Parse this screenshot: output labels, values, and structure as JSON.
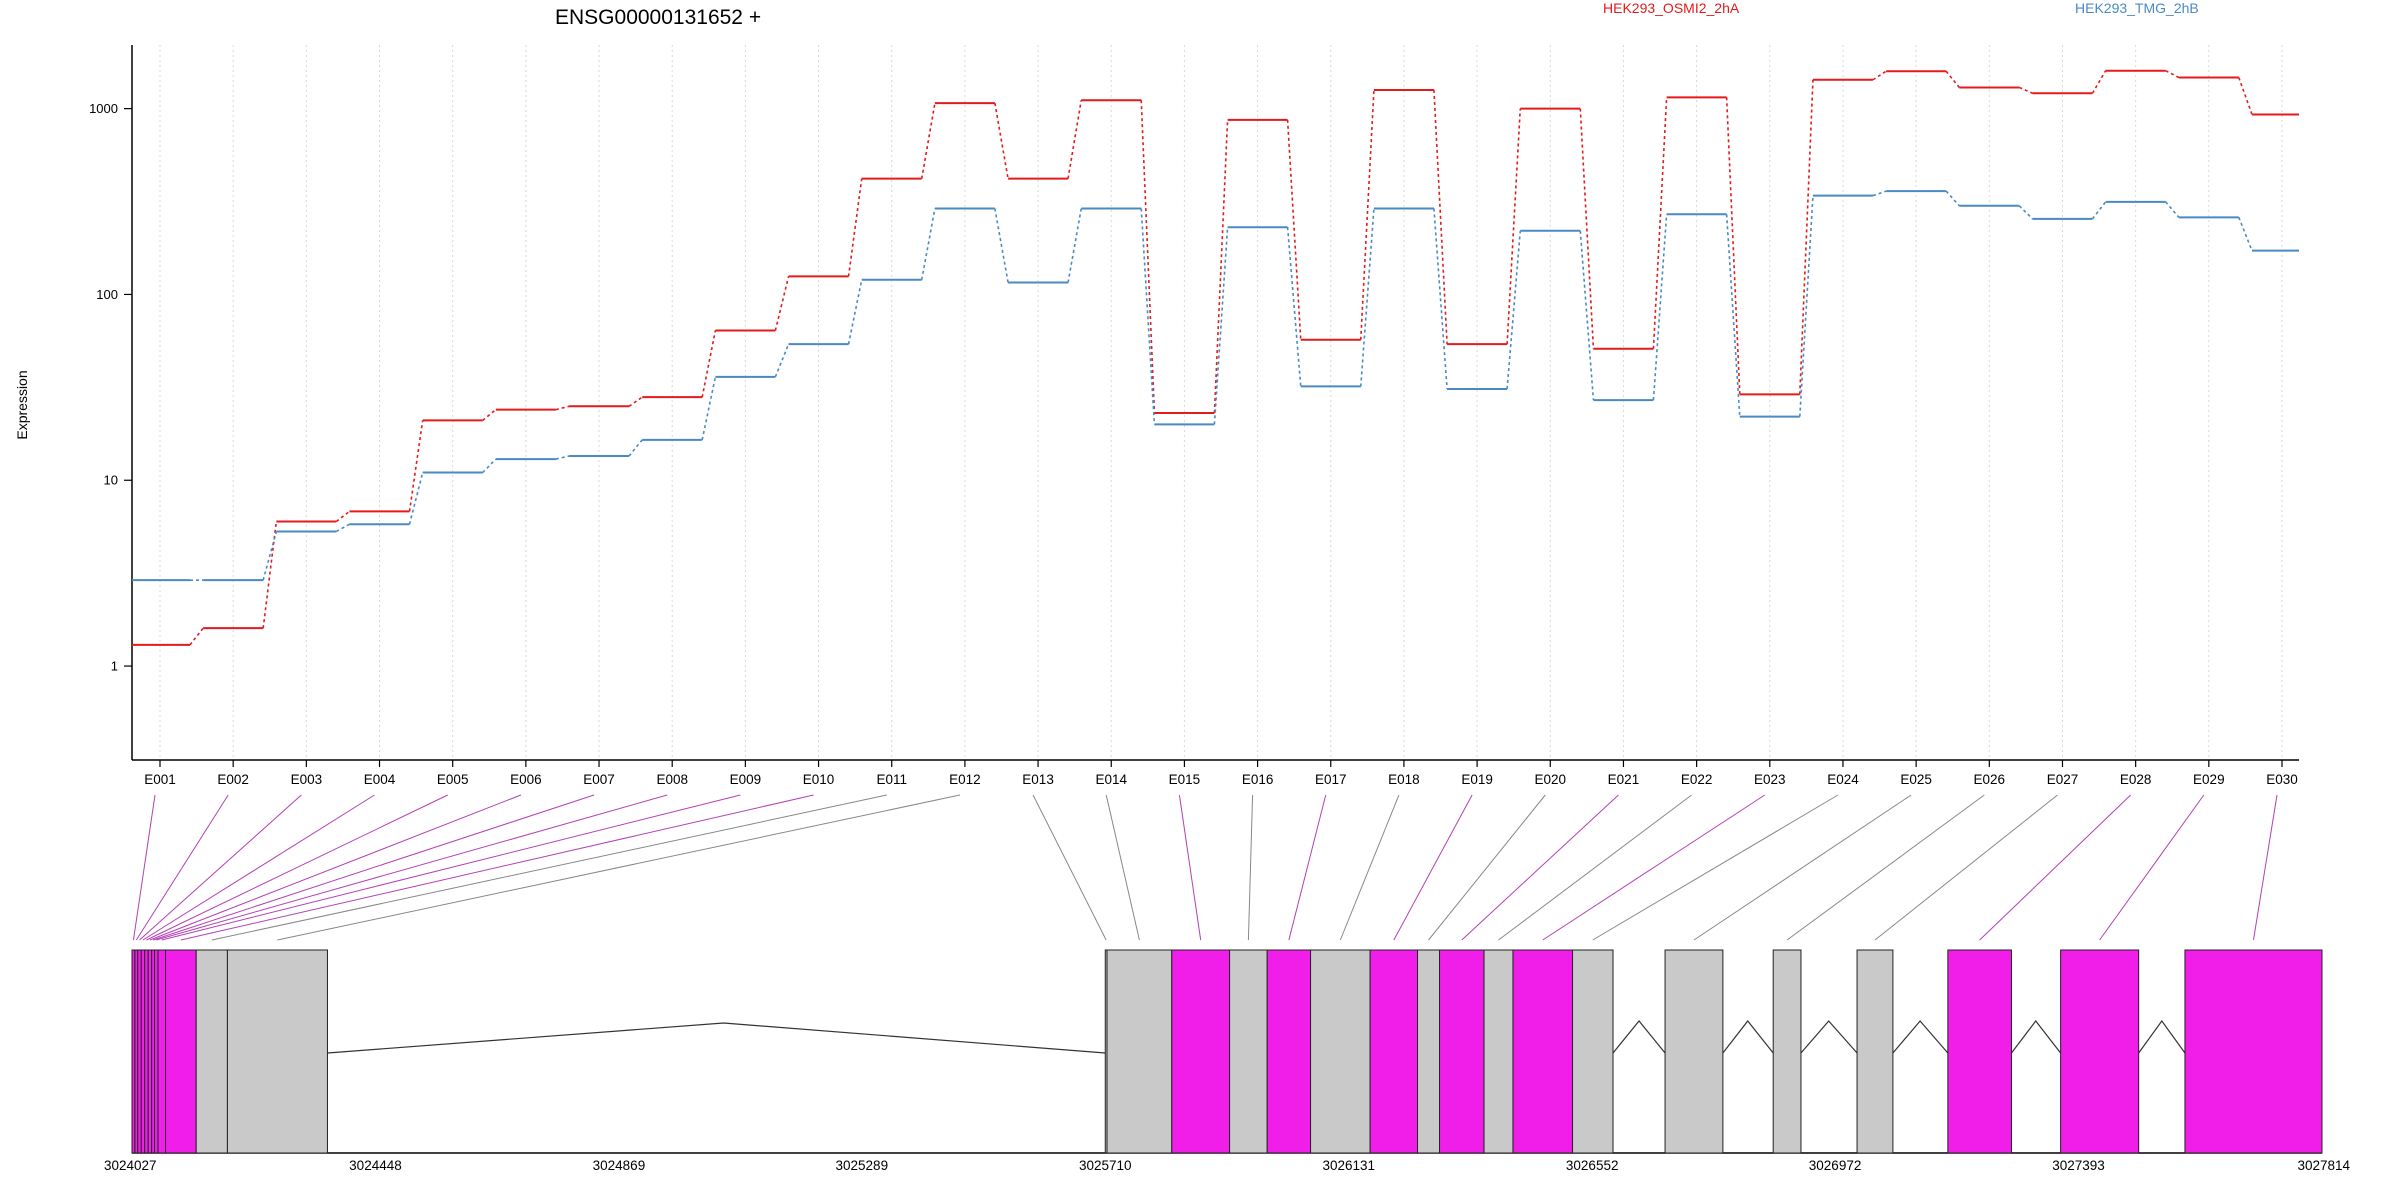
{
  "chart_data": {
    "type": "line",
    "title": "ENSG00000131652 +",
    "ylabel": "Expression",
    "xlabel": "",
    "yscale": "log",
    "ylim": [
      0.4,
      2200
    ],
    "yticks": [
      1,
      10,
      100,
      1000
    ],
    "ytick_labels": [
      "1",
      "10",
      "100",
      "1000"
    ],
    "grid": "vertical dotted lines at exon centres",
    "legend_position": "top-right",
    "categories": [
      "E001",
      "E002",
      "E003",
      "E004",
      "E005",
      "E006",
      "E007",
      "E008",
      "E009",
      "E010",
      "E011",
      "E012",
      "E013",
      "E014",
      "E015",
      "E016",
      "E017",
      "E018",
      "E019",
      "E020",
      "E021",
      "E022",
      "E023",
      "E024",
      "E025",
      "E026",
      "E027",
      "E028",
      "E029",
      "E030"
    ],
    "series": [
      {
        "name": "HEK293_OSMI2_2hA",
        "color": "#e41a1c",
        "values": [
          1.3,
          1.6,
          6.0,
          6.8,
          21,
          24,
          25,
          28,
          64,
          125,
          420,
          1070,
          420,
          1110,
          23,
          870,
          57,
          1260,
          54,
          1000,
          51,
          1150,
          29,
          1430,
          1590,
          1300,
          1210,
          1600,
          1470,
          930
        ]
      },
      {
        "name": "HEK293_TMG_2hB",
        "color": "#4a8ac4",
        "values": [
          2.9,
          2.9,
          5.3,
          5.8,
          11,
          13,
          13.5,
          16.5,
          36,
          54,
          120,
          290,
          116,
          290,
          20,
          230,
          32,
          290,
          31,
          220,
          27,
          270,
          22,
          340,
          360,
          300,
          255,
          315,
          260,
          172
        ]
      }
    ],
    "gene_model": {
      "coordinate_ticks": [
        "3024027",
        "3024448",
        "3024869",
        "3025289",
        "3025710",
        "3026131",
        "3026552",
        "3026972",
        "3027393",
        "3027814"
      ],
      "coordinate_range": [
        3024027,
        3027814
      ],
      "highlight_color": "#f01ee8",
      "base_color": "#c9c9c9",
      "exons": [
        {
          "id": "E001",
          "start": 3024027,
          "end": 3024032,
          "highlighted": true
        },
        {
          "id": "E002",
          "start": 3024032,
          "end": 3024037,
          "highlighted": true
        },
        {
          "id": "E003",
          "start": 3024037,
          "end": 3024043,
          "highlighted": true
        },
        {
          "id": "E004",
          "start": 3024043,
          "end": 3024049,
          "highlighted": true
        },
        {
          "id": "E005",
          "start": 3024049,
          "end": 3024055,
          "highlighted": true
        },
        {
          "id": "E006",
          "start": 3024055,
          "end": 3024061,
          "highlighted": true
        },
        {
          "id": "E007",
          "start": 3024061,
          "end": 3024066,
          "highlighted": true
        },
        {
          "id": "E008",
          "start": 3024066,
          "end": 3024072,
          "highlighted": true
        },
        {
          "id": "E009",
          "start": 3024072,
          "end": 3024085,
          "highlighted": true
        },
        {
          "id": "E010",
          "start": 3024085,
          "end": 3024138,
          "highlighted": true
        },
        {
          "id": "E011",
          "start": 3024138,
          "end": 3024192,
          "highlighted": false
        },
        {
          "id": "E012",
          "start": 3024192,
          "end": 3024365,
          "highlighted": false
        },
        {
          "id": "E013",
          "start": 3025710,
          "end": 3025713,
          "highlighted": false
        },
        {
          "id": "E014",
          "start": 3025713,
          "end": 3025825,
          "highlighted": false
        },
        {
          "id": "E015",
          "start": 3025825,
          "end": 3025925,
          "highlighted": true
        },
        {
          "id": "E016",
          "start": 3025925,
          "end": 3025990,
          "highlighted": false
        },
        {
          "id": "E017",
          "start": 3025990,
          "end": 3026065,
          "highlighted": true
        },
        {
          "id": "E018",
          "start": 3026065,
          "end": 3026168,
          "highlighted": false
        },
        {
          "id": "E019",
          "start": 3026168,
          "end": 3026250,
          "highlighted": true
        },
        {
          "id": "E020",
          "start": 3026250,
          "end": 3026288,
          "highlighted": false
        },
        {
          "id": "E021",
          "start": 3026288,
          "end": 3026365,
          "highlighted": true
        },
        {
          "id": "E022",
          "start": 3026365,
          "end": 3026415,
          "highlighted": false
        },
        {
          "id": "E023",
          "start": 3026415,
          "end": 3026518,
          "highlighted": true
        },
        {
          "id": "E024",
          "start": 3026518,
          "end": 3026588,
          "highlighted": false
        },
        {
          "id": "E025",
          "start": 3026678,
          "end": 3026778,
          "highlighted": false
        },
        {
          "id": "E026",
          "start": 3026865,
          "end": 3026913,
          "highlighted": false
        },
        {
          "id": "E027",
          "start": 3027010,
          "end": 3027072,
          "highlighted": false
        },
        {
          "id": "E028",
          "start": 3027167,
          "end": 3027277,
          "highlighted": true
        },
        {
          "id": "E029",
          "start": 3027362,
          "end": 3027497,
          "highlighted": true
        },
        {
          "id": "E030",
          "start": 3027577,
          "end": 3027814,
          "highlighted": true
        }
      ],
      "introns": [
        {
          "from": 3024365,
          "to": 3025710,
          "apex": 3025050
        },
        {
          "from": 3026588,
          "to": 3026678,
          "apex": 3026633
        },
        {
          "from": 3026778,
          "to": 3026865,
          "apex": 3026821
        },
        {
          "from": 3026913,
          "to": 3027010,
          "apex": 3026961
        },
        {
          "from": 3027072,
          "to": 3027167,
          "apex": 3027119
        },
        {
          "from": 3027277,
          "to": 3027362,
          "apex": 3027319
        },
        {
          "from": 3027497,
          "to": 3027577,
          "apex": 3027537
        }
      ]
    }
  }
}
